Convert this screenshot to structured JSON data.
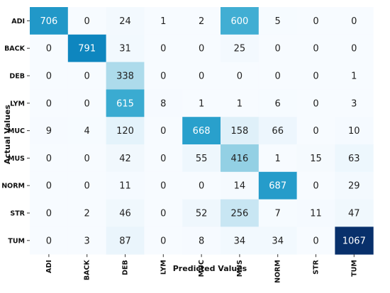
{
  "chart_data": {
    "type": "heatmap",
    "title": "",
    "xlabel": "Predicted Values",
    "ylabel": "Actual Values",
    "x_categories": [
      "ADI",
      "BACK",
      "DEB",
      "LYM",
      "MUC",
      "MUS",
      "NORM",
      "STR",
      "TUM"
    ],
    "y_categories": [
      "ADI",
      "BACK",
      "DEB",
      "LYM",
      "MUC",
      "MUS",
      "NORM",
      "STR",
      "TUM"
    ],
    "values": [
      [
        706,
        0,
        24,
        1,
        2,
        600,
        5,
        0,
        0
      ],
      [
        0,
        791,
        31,
        0,
        0,
        25,
        0,
        0,
        0
      ],
      [
        0,
        0,
        338,
        0,
        0,
        0,
        0,
        0,
        1
      ],
      [
        0,
        0,
        615,
        8,
        1,
        1,
        6,
        0,
        3
      ],
      [
        9,
        4,
        120,
        0,
        668,
        158,
        66,
        0,
        10
      ],
      [
        0,
        0,
        42,
        0,
        55,
        416,
        1,
        15,
        63
      ],
      [
        0,
        0,
        11,
        0,
        0,
        14,
        687,
        0,
        29
      ],
      [
        0,
        2,
        46,
        0,
        52,
        256,
        7,
        11,
        47
      ],
      [
        0,
        3,
        87,
        0,
        8,
        34,
        34,
        0,
        1067
      ]
    ],
    "colormap": [
      "#f7fbff",
      "#d6ecf7",
      "#8fcfe3",
      "#2fa6cf",
      "#0079b8",
      "#08306b"
    ],
    "value_range": [
      0,
      1067
    ],
    "text_color_light": "#ffffff",
    "text_color_dark": "#222222"
  }
}
